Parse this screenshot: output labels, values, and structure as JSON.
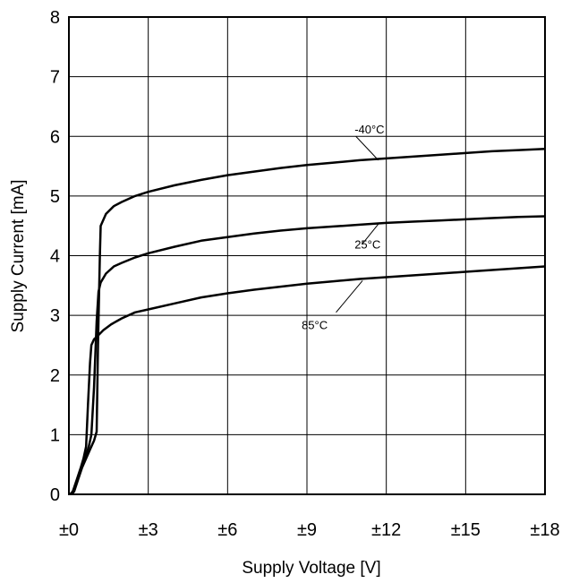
{
  "chart_data": {
    "type": "line",
    "title": "",
    "xlabel": "Supply Voltage [V]",
    "ylabel": "Supply Current [mA]",
    "xlim": [
      0,
      18
    ],
    "ylim": [
      0,
      8
    ],
    "grid": true,
    "x_ticks": [
      {
        "value": 0,
        "label": "±0"
      },
      {
        "value": 3,
        "label": "±3"
      },
      {
        "value": 6,
        "label": "±6"
      },
      {
        "value": 9,
        "label": "±9"
      },
      {
        "value": 12,
        "label": "±12"
      },
      {
        "value": 15,
        "label": "±15"
      },
      {
        "value": 18,
        "label": "±18"
      }
    ],
    "y_ticks": [
      {
        "value": 0,
        "label": "0"
      },
      {
        "value": 1,
        "label": "1"
      },
      {
        "value": 2,
        "label": "2"
      },
      {
        "value": 3,
        "label": "3"
      },
      {
        "value": 4,
        "label": "4"
      },
      {
        "value": 5,
        "label": "5"
      },
      {
        "value": 6,
        "label": "6"
      },
      {
        "value": 7,
        "label": "7"
      },
      {
        "value": 8,
        "label": "8"
      }
    ],
    "series": [
      {
        "name": "-40°C",
        "color": "#000000",
        "label_at": [
          10.8,
          6.05
        ],
        "leader": [
          [
            11.7,
            5.6
          ],
          [
            10.85,
            6.0
          ]
        ],
        "points": [
          [
            0.1,
            0
          ],
          [
            0.2,
            0.05
          ],
          [
            0.35,
            0.25
          ],
          [
            0.5,
            0.45
          ],
          [
            0.65,
            0.6
          ],
          [
            0.8,
            0.75
          ],
          [
            0.95,
            0.9
          ],
          [
            1.05,
            1.05
          ],
          [
            1.1,
            2.5
          ],
          [
            1.17,
            4.0
          ],
          [
            1.2,
            4.5
          ],
          [
            1.4,
            4.7
          ],
          [
            1.7,
            4.83
          ],
          [
            2.0,
            4.9
          ],
          [
            2.5,
            5.0
          ],
          [
            3,
            5.07
          ],
          [
            4,
            5.18
          ],
          [
            5,
            5.27
          ],
          [
            6,
            5.35
          ],
          [
            7,
            5.41
          ],
          [
            8,
            5.47
          ],
          [
            9,
            5.52
          ],
          [
            10,
            5.56
          ],
          [
            11,
            5.6
          ],
          [
            12,
            5.63
          ],
          [
            13,
            5.66
          ],
          [
            14,
            5.69
          ],
          [
            15,
            5.72
          ],
          [
            16,
            5.75
          ],
          [
            17,
            5.77
          ],
          [
            18,
            5.79
          ]
        ]
      },
      {
        "name": "25°C",
        "color": "#000000",
        "label_at": [
          10.8,
          4.12
        ],
        "leader": [
          [
            11.7,
            4.53
          ],
          [
            11.1,
            4.2
          ]
        ],
        "points": [
          [
            0.05,
            0
          ],
          [
            0.15,
            0.05
          ],
          [
            0.3,
            0.2
          ],
          [
            0.45,
            0.4
          ],
          [
            0.6,
            0.6
          ],
          [
            0.75,
            0.8
          ],
          [
            0.85,
            1.0
          ],
          [
            0.95,
            1.8
          ],
          [
            1.05,
            2.9
          ],
          [
            1.12,
            3.4
          ],
          [
            1.2,
            3.55
          ],
          [
            1.4,
            3.7
          ],
          [
            1.7,
            3.82
          ],
          [
            2,
            3.88
          ],
          [
            2.5,
            3.97
          ],
          [
            3,
            4.04
          ],
          [
            4,
            4.15
          ],
          [
            5,
            4.25
          ],
          [
            6,
            4.31
          ],
          [
            7,
            4.37
          ],
          [
            8,
            4.42
          ],
          [
            9,
            4.46
          ],
          [
            10,
            4.49
          ],
          [
            11,
            4.52
          ],
          [
            12,
            4.55
          ],
          [
            13,
            4.57
          ],
          [
            14,
            4.59
          ],
          [
            15,
            4.61
          ],
          [
            16,
            4.63
          ],
          [
            17,
            4.65
          ],
          [
            18,
            4.66
          ]
        ]
      },
      {
        "name": "85°C",
        "color": "#000000",
        "label_at": [
          8.8,
          2.77
        ],
        "leader": [
          [
            11.1,
            3.58
          ],
          [
            10.1,
            3.05
          ]
        ],
        "points": [
          [
            0.05,
            0
          ],
          [
            0.15,
            0.05
          ],
          [
            0.3,
            0.25
          ],
          [
            0.45,
            0.45
          ],
          [
            0.55,
            0.6
          ],
          [
            0.65,
            0.8
          ],
          [
            0.72,
            1.5
          ],
          [
            0.8,
            2.2
          ],
          [
            0.85,
            2.5
          ],
          [
            0.95,
            2.6
          ],
          [
            1.1,
            2.66
          ],
          [
            1.3,
            2.75
          ],
          [
            1.6,
            2.85
          ],
          [
            2,
            2.95
          ],
          [
            2.5,
            3.05
          ],
          [
            3,
            3.1
          ],
          [
            4,
            3.2
          ],
          [
            5,
            3.3
          ],
          [
            6,
            3.37
          ],
          [
            7,
            3.43
          ],
          [
            8,
            3.48
          ],
          [
            9,
            3.53
          ],
          [
            10,
            3.57
          ],
          [
            11,
            3.61
          ],
          [
            12,
            3.64
          ],
          [
            13,
            3.67
          ],
          [
            14,
            3.7
          ],
          [
            15,
            3.73
          ],
          [
            16,
            3.76
          ],
          [
            17,
            3.79
          ],
          [
            18,
            3.82
          ]
        ]
      }
    ]
  }
}
